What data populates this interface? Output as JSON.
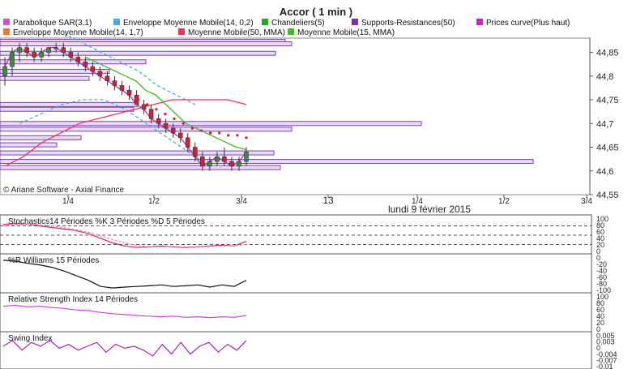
{
  "title": "Accor  ( 1 min )",
  "legend": [
    {
      "label": "Parabolique SAR(3,1)",
      "color": "#cc55cc"
    },
    {
      "label": "Enveloppe Moyenne Mobile(14, 0,2)",
      "color": "#44aaee"
    },
    {
      "label": "Chandeliers(5)",
      "color": "#22aa22"
    },
    {
      "label": "Supports-Resistances(50)",
      "color": "#7733aa"
    },
    {
      "label": "Prices curve(Plus haut)",
      "color": "#cc22cc"
    },
    {
      "label": "Enveloppe Moyenne Mobile(14, 1,7)",
      "color": "#ee7733"
    },
    {
      "label": "Moyenne Mobile(50, MMA)",
      "color": "#ee3355"
    },
    {
      "label": "Moyenne Mobile(15, MMA)",
      "color": "#44bb22"
    }
  ],
  "copyright": "© Ariane Software - Axial Finance",
  "date_label": "lundi 9 février 2015",
  "x_ticks": [
    "1/4",
    "1/2",
    "3/4",
    "13",
    "1/4",
    "1/2",
    "3/4"
  ],
  "panels": [
    {
      "name": "Stochastics",
      "label": "Stochastics14 Périodes    %K 3 Périodes    %D 5 Périodes",
      "ticks": [
        "100",
        "80",
        "60",
        "40",
        "20",
        "0"
      ]
    },
    {
      "name": "Williams",
      "label": "%R Williams 15 Périodes",
      "ticks": [
        "0",
        "-20",
        "-40",
        "-60",
        "-80",
        "-100"
      ]
    },
    {
      "name": "RSI",
      "label": "Relative Strength Index 14 Périodes",
      "ticks": [
        "100",
        "80",
        "60",
        "40",
        "20",
        "0"
      ]
    },
    {
      "name": "Swing",
      "label": "Swing Index",
      "ticks": [
        "0,005",
        "0,003",
        "0",
        "-0,004",
        "-0,007",
        "-0,01"
      ]
    }
  ],
  "chart_data": [
    {
      "type": "candlestick",
      "title": "Accor  ( 1 min )",
      "ylim": [
        44.55,
        44.88
      ],
      "yticks": [
        "44,85",
        "44,8",
        "44,75",
        "44,7",
        "44,65",
        "44,6",
        "44,55"
      ],
      "candles": [
        {
          "o": 44.8,
          "h": 44.84,
          "l": 44.78,
          "c": 44.82
        },
        {
          "o": 44.82,
          "h": 44.86,
          "l": 44.8,
          "c": 44.85
        },
        {
          "o": 44.85,
          "h": 44.87,
          "l": 44.83,
          "c": 44.86
        },
        {
          "o": 44.86,
          "h": 44.87,
          "l": 44.84,
          "c": 44.85
        },
        {
          "o": 44.85,
          "h": 44.86,
          "l": 44.83,
          "c": 44.84
        },
        {
          "o": 44.84,
          "h": 44.86,
          "l": 44.83,
          "c": 44.85
        },
        {
          "o": 44.85,
          "h": 44.86,
          "l": 44.84,
          "c": 44.86
        },
        {
          "o": 44.86,
          "h": 44.87,
          "l": 44.85,
          "c": 44.86
        },
        {
          "o": 44.86,
          "h": 44.87,
          "l": 44.84,
          "c": 44.85
        },
        {
          "o": 44.85,
          "h": 44.86,
          "l": 44.83,
          "c": 44.84
        },
        {
          "o": 44.84,
          "h": 44.85,
          "l": 44.82,
          "c": 44.83
        },
        {
          "o": 44.83,
          "h": 44.84,
          "l": 44.81,
          "c": 44.82
        },
        {
          "o": 44.82,
          "h": 44.83,
          "l": 44.8,
          "c": 44.81
        },
        {
          "o": 44.81,
          "h": 44.82,
          "l": 44.79,
          "c": 44.8
        },
        {
          "o": 44.8,
          "h": 44.81,
          "l": 44.78,
          "c": 44.79
        },
        {
          "o": 44.79,
          "h": 44.8,
          "l": 44.77,
          "c": 44.78
        },
        {
          "o": 44.78,
          "h": 44.79,
          "l": 44.76,
          "c": 44.77
        },
        {
          "o": 44.77,
          "h": 44.78,
          "l": 44.75,
          "c": 44.76
        },
        {
          "o": 44.76,
          "h": 44.77,
          "l": 44.74,
          "c": 44.74
        },
        {
          "o": 44.74,
          "h": 44.75,
          "l": 44.72,
          "c": 44.73
        },
        {
          "o": 44.73,
          "h": 44.74,
          "l": 44.7,
          "c": 44.71
        },
        {
          "o": 44.71,
          "h": 44.72,
          "l": 44.69,
          "c": 44.7
        },
        {
          "o": 44.7,
          "h": 44.71,
          "l": 44.68,
          "c": 44.69
        },
        {
          "o": 44.69,
          "h": 44.7,
          "l": 44.67,
          "c": 44.68
        },
        {
          "o": 44.68,
          "h": 44.69,
          "l": 44.66,
          "c": 44.67
        },
        {
          "o": 44.67,
          "h": 44.68,
          "l": 44.64,
          "c": 44.65
        },
        {
          "o": 44.65,
          "h": 44.66,
          "l": 44.62,
          "c": 44.63
        },
        {
          "o": 44.63,
          "h": 44.64,
          "l": 44.6,
          "c": 44.61
        },
        {
          "o": 44.61,
          "h": 44.63,
          "l": 44.6,
          "c": 44.62
        },
        {
          "o": 44.62,
          "h": 44.64,
          "l": 44.61,
          "c": 44.63
        },
        {
          "o": 44.63,
          "h": 44.65,
          "l": 44.61,
          "c": 44.62
        },
        {
          "o": 44.62,
          "h": 44.63,
          "l": 44.6,
          "c": 44.61
        },
        {
          "o": 44.61,
          "h": 44.63,
          "l": 44.6,
          "c": 44.62
        },
        {
          "o": 44.62,
          "h": 44.65,
          "l": 44.61,
          "c": 44.64
        }
      ],
      "ma15": [
        44.84,
        44.83,
        44.82,
        44.81,
        44.8,
        44.79,
        44.77,
        44.76,
        44.74,
        44.72,
        44.7,
        44.69,
        44.68,
        44.67,
        44.66,
        44.65,
        44.645
      ],
      "ma50": [
        44.61,
        44.63,
        44.66,
        44.68,
        44.7,
        44.71,
        44.72,
        44.73,
        44.74,
        44.75,
        44.75,
        44.75,
        44.75,
        44.74
      ],
      "env_upper": [
        44.89,
        44.87,
        44.85,
        44.83,
        44.81,
        44.78,
        44.76,
        44.74
      ],
      "env_lower": [
        44.7,
        44.72,
        44.74,
        44.75,
        44.75,
        44.73,
        44.7,
        44.67,
        44.64,
        44.61
      ],
      "sar": [
        44.76,
        44.75,
        44.74,
        44.73,
        44.72,
        44.71,
        44.7,
        44.69,
        44.685,
        44.68,
        44.68,
        44.675,
        44.675,
        44.67
      ]
    },
    {
      "type": "line",
      "title": "Stochastics14 Périodes    %K 3 Périodes    %D 5 Périodes",
      "ylim": [
        0,
        100
      ],
      "k": [
        85,
        88,
        86,
        80,
        75,
        70,
        65,
        55,
        40,
        25,
        15,
        10,
        12,
        15,
        12,
        10,
        12,
        15,
        18,
        15,
        30
      ],
      "d": [
        80,
        84,
        86,
        84,
        80,
        74,
        68,
        60,
        48,
        36,
        25,
        16,
        12,
        12,
        13,
        12,
        12,
        13,
        15,
        16,
        20
      ]
    },
    {
      "type": "line",
      "title": "%R Williams 15 Périodes",
      "ylim": [
        -100,
        0
      ],
      "values": [
        -5,
        -8,
        -15,
        -20,
        -28,
        -40,
        -55,
        -70,
        -90,
        -95,
        -92,
        -90,
        -88,
        -85,
        -90,
        -88,
        -85,
        -92,
        -85,
        -90,
        -70
      ]
    },
    {
      "type": "line",
      "title": "Relative Strength Index 14 Périodes",
      "ylim": [
        0,
        100
      ],
      "values": [
        72,
        75,
        70,
        72,
        68,
        65,
        60,
        58,
        52,
        48,
        45,
        42,
        40,
        38,
        40,
        36,
        38,
        35,
        38,
        36,
        42
      ]
    },
    {
      "type": "line",
      "title": "Swing Index",
      "ylim": [
        -0.01,
        0.005
      ],
      "values": [
        0.0,
        0.003,
        -0.002,
        0.002,
        0.0,
        0.003,
        -0.001,
        0.001,
        -0.002,
        0.0,
        0.002,
        -0.003,
        0.001,
        -0.001,
        0.0,
        -0.002,
        -0.005,
        0.001,
        -0.004,
        0.002,
        -0.004,
        0.0,
        0.002,
        -0.003,
        0.001,
        -0.002,
        0.003
      ]
    }
  ]
}
